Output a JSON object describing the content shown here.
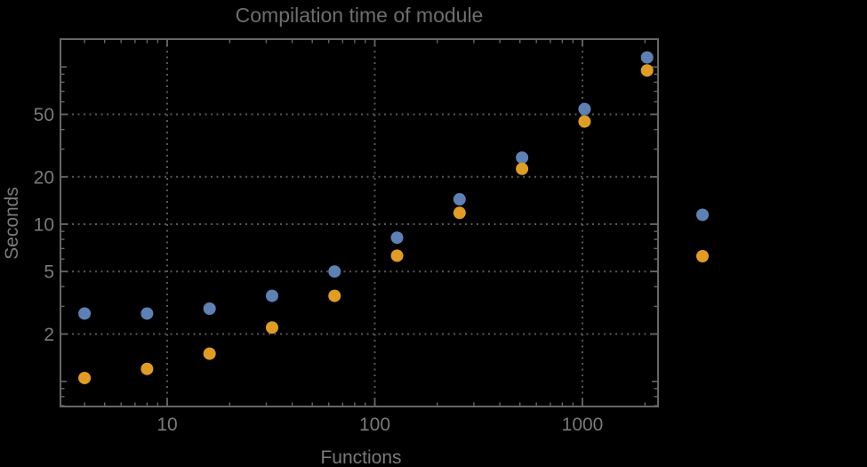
{
  "chart_data": {
    "type": "scatter",
    "title": "Compilation time of module",
    "xlabel": "Functions",
    "ylabel": "Seconds",
    "x_scale": "log",
    "y_scale": "log",
    "x_range": [
      3.06,
      2312
    ],
    "y_range": [
      0.69,
      150
    ],
    "grid": "dotted lines at labeled ticks",
    "legend_position": "right-outside, markers only (labels not visible)",
    "x": [
      4,
      8,
      16,
      32,
      64,
      128,
      256,
      512,
      1024,
      2048
    ],
    "series": [
      {
        "name": "series-1",
        "marker": "disk",
        "color": "#5e81b5",
        "values": [
          2.7,
          2.7,
          2.9,
          3.5,
          5.0,
          8.2,
          14.4,
          26.5,
          54,
          115
        ]
      },
      {
        "name": "series-2",
        "marker": "disk",
        "color": "#e19c24",
        "values": [
          1.05,
          1.2,
          1.5,
          2.2,
          3.5,
          6.3,
          11.8,
          22.5,
          45,
          95
        ]
      }
    ],
    "x_tick_values": [
      10,
      100,
      1000
    ],
    "x_tick_labels": [
      "10",
      "100",
      "1000"
    ],
    "y_tick_values": [
      50,
      20,
      10,
      5,
      2
    ],
    "y_tick_labels": [
      "50",
      "20",
      "10",
      "5",
      "2"
    ],
    "y_unlabeled_major_ticks": [
      100,
      1
    ]
  },
  "style": {
    "background": "#000000",
    "series1_color": "#5e81b5",
    "series2_color": "#e19c24",
    "frame_color": "#666666",
    "tick_color": "#666666",
    "grid_color": "#585858",
    "tick_label_color": "#7a7a7a",
    "axis_label_color": "#7a7a7a",
    "title_color": "#6e6e6e"
  }
}
